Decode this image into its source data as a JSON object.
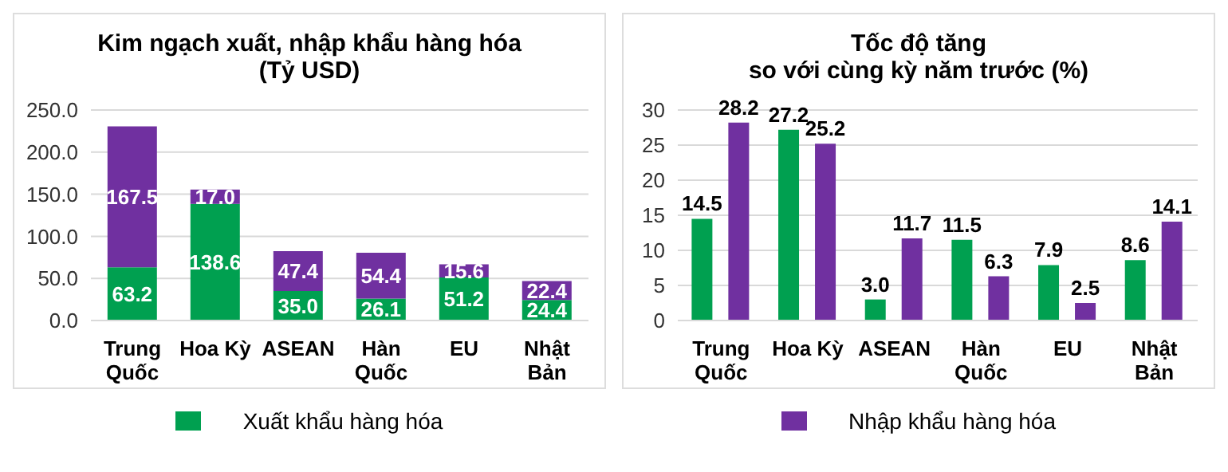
{
  "chart_data": [
    {
      "type": "bar",
      "title": "Kim ngạch xuất, nhập khẩu hàng hóa\n(Tỷ USD)",
      "categories": [
        "Trung\nQuốc",
        "Hoa Kỳ",
        "ASEAN",
        "Hàn\nQuốc",
        "EU",
        "Nhật\nBản"
      ],
      "stacked": true,
      "series": [
        {
          "name": "Xuất khẩu hàng hóa",
          "color": "#00a050",
          "values": [
            63.2,
            138.6,
            35.0,
            26.1,
            51.2,
            24.4
          ],
          "value_labels": [
            "63.2",
            "138.6",
            "35.0",
            "26.1",
            "51.2",
            "24.4"
          ]
        },
        {
          "color": "#7030a0",
          "values": [
            167.5,
            17.0,
            47.4,
            54.4,
            15.6,
            22.4
          ],
          "value_labels": [
            "167.5",
            "17.0",
            "47.4",
            "54.4",
            "15.6",
            "22.4"
          ]
        }
      ],
      "ylim": [
        0,
        250
      ],
      "yticks": [
        {
          "value": 0,
          "label": "0.0"
        },
        {
          "value": 50,
          "label": "50.0"
        },
        {
          "value": 100,
          "label": "100.0"
        },
        {
          "value": 150,
          "label": "150.0"
        },
        {
          "value": 200,
          "label": "200.0"
        },
        {
          "value": 250,
          "label": "250.0"
        }
      ],
      "grid": "y",
      "legend": "bottom"
    },
    {
      "type": "bar",
      "title": "Tốc độ tăng\nso với cùng kỳ năm trước (%)",
      "categories": [
        "Trung\nQuốc",
        "Hoa Kỳ",
        "ASEAN",
        "Hàn\nQuốc",
        "EU",
        "Nhật\nBản"
      ],
      "series": [
        {
          "color": "#00a050",
          "values": [
            14.5,
            27.2,
            3.0,
            11.5,
            7.9,
            8.6
          ],
          "value_labels": [
            "14.5",
            "27.2",
            "3.0",
            "11.5",
            "7.9",
            "8.6"
          ]
        },
        {
          "name": "Nhập khẩu hàng hóa",
          "color": "#7030a0",
          "values": [
            28.2,
            25.2,
            11.7,
            6.3,
            2.5,
            14.1
          ],
          "value_labels": [
            "28.2",
            "25.2",
            "11.7",
            "6.3",
            "2.5",
            "14.1"
          ]
        }
      ],
      "ylim": [
        0,
        30
      ],
      "yticks": [
        0,
        5,
        10,
        15,
        20,
        25,
        30
      ],
      "grid": "y",
      "legend": "bottom"
    }
  ]
}
